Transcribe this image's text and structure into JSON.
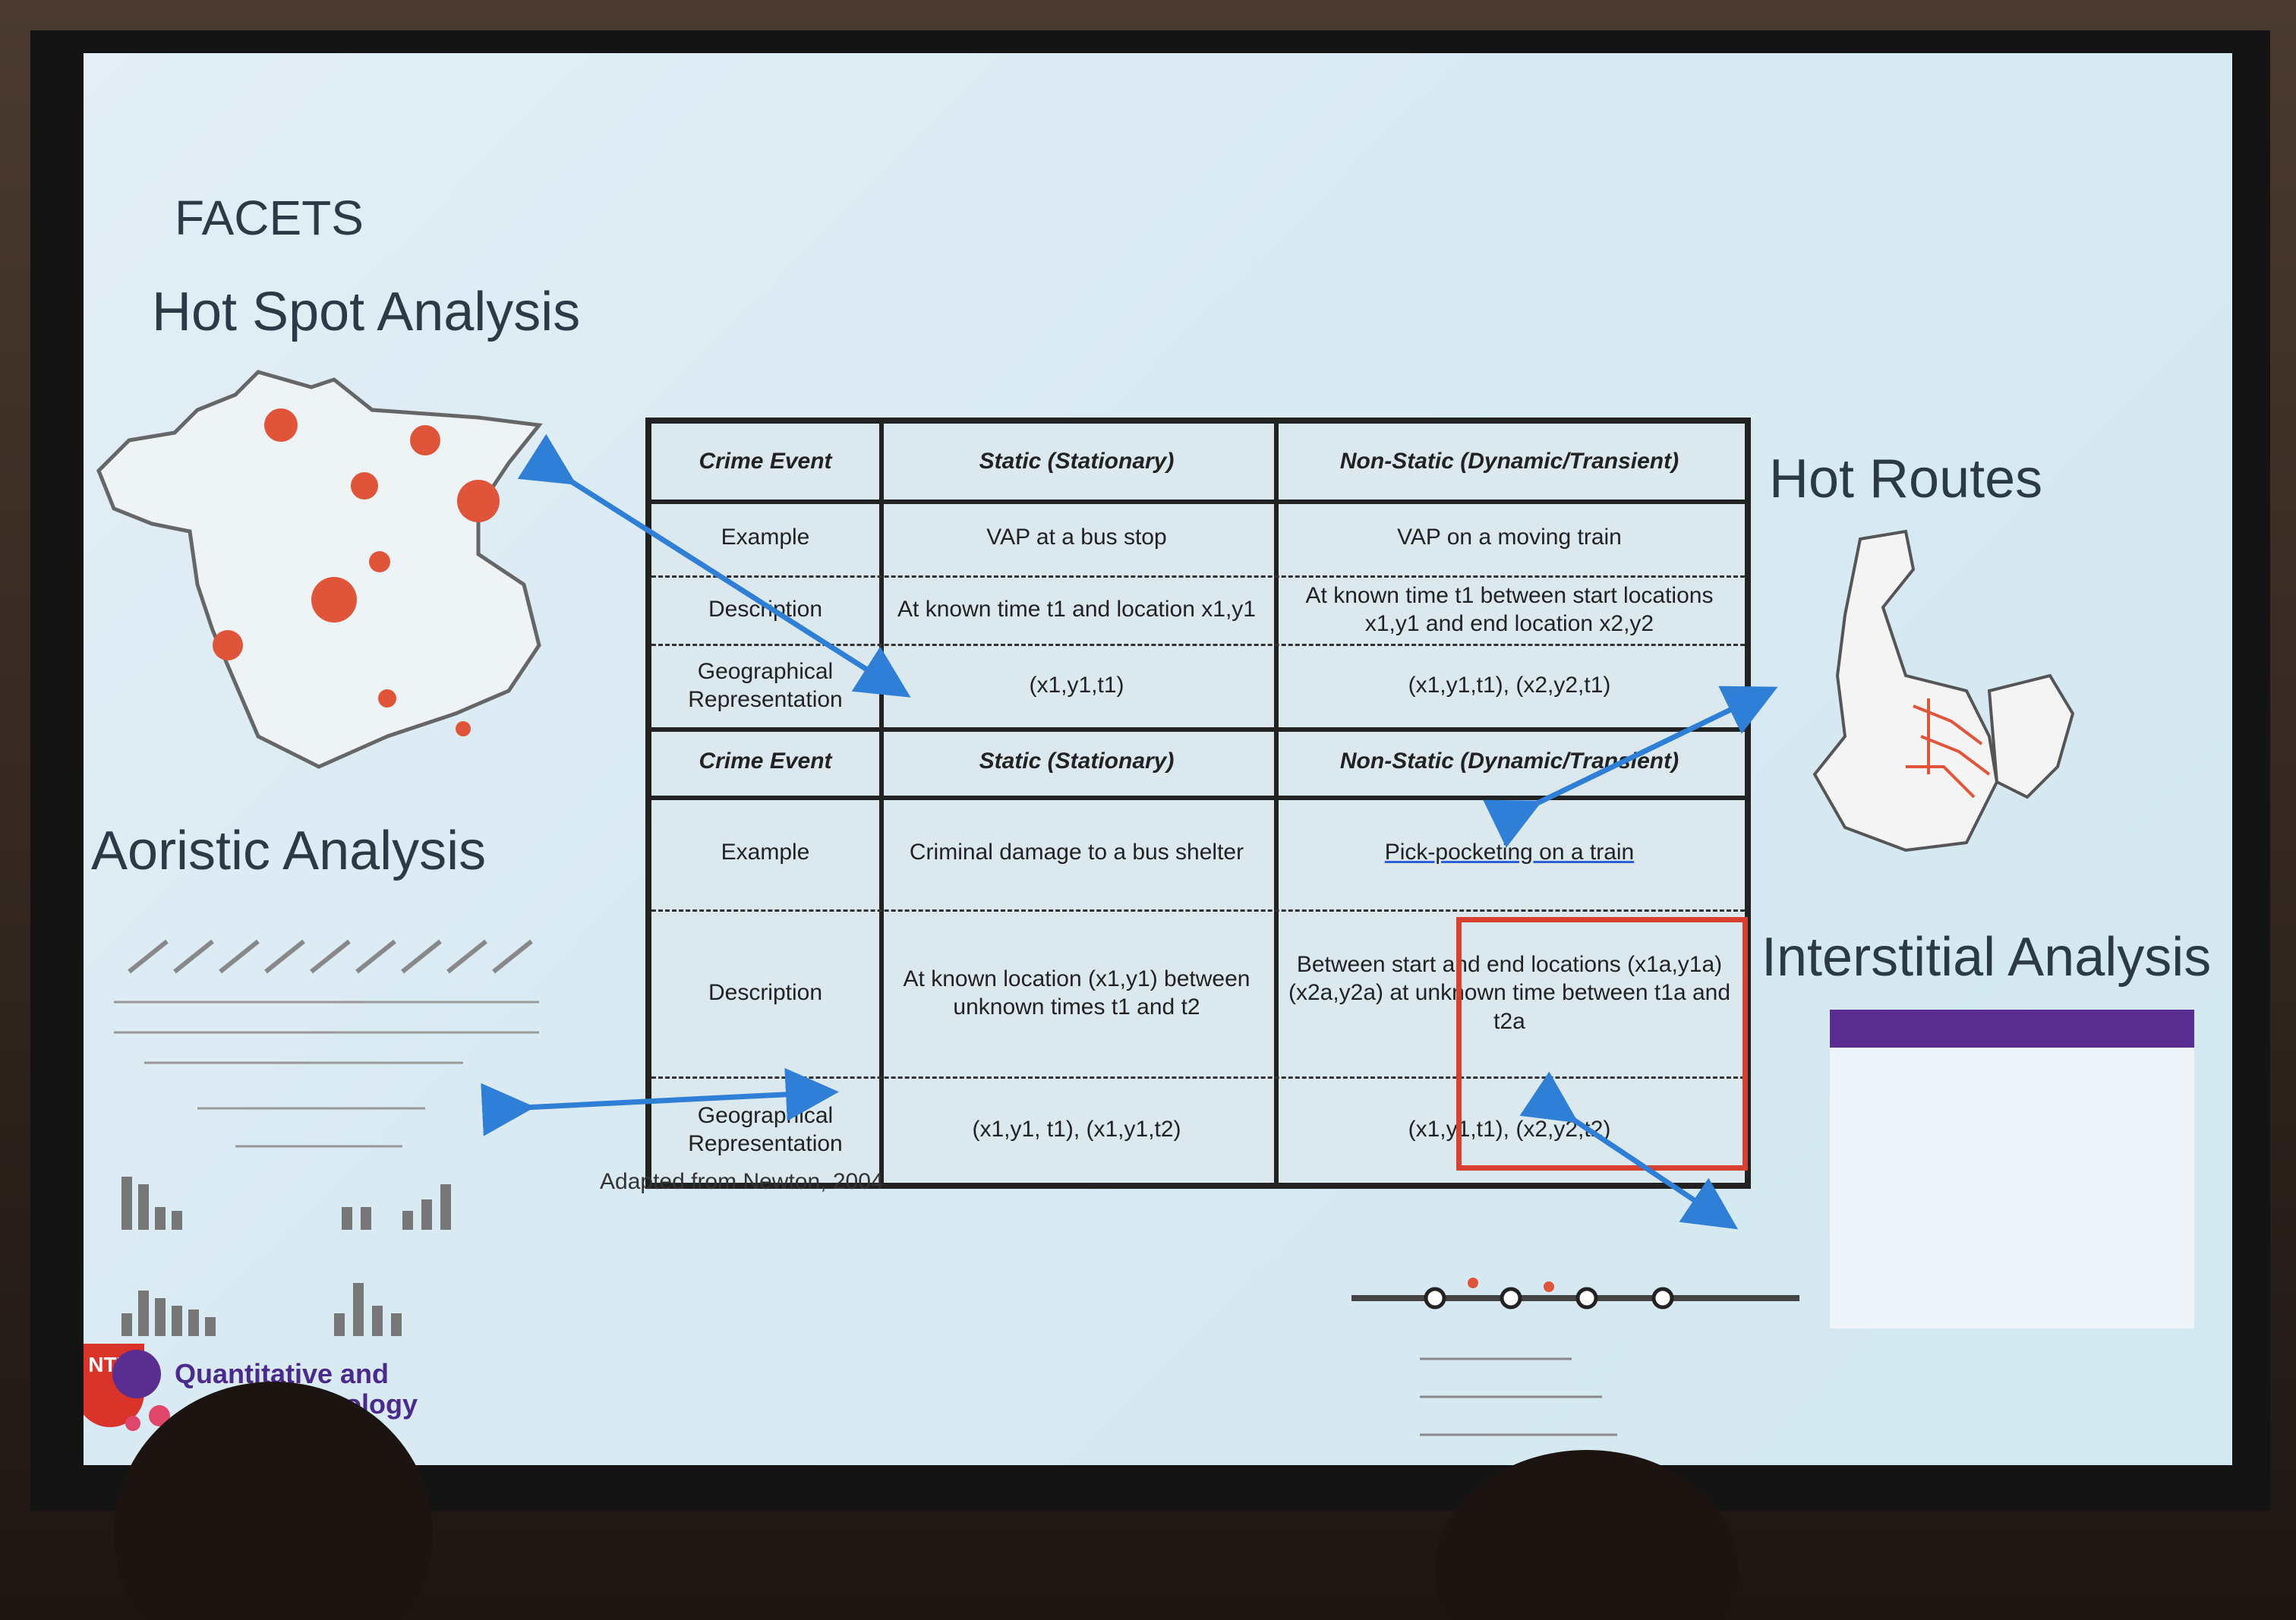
{
  "slide": {
    "section_label": "FACETS",
    "hot_spot_title": "Hot Spot Analysis",
    "aoristic_title": "Aoristic Analysis",
    "hot_routes_title": "Hot Routes",
    "interstitial_title": "Interstitial Analysis",
    "source_note": "Adapted from Newton, 2004",
    "logo_badge": "NTU",
    "logo_line1": "Quantitative and",
    "logo_line2": "minology"
  },
  "table_top": {
    "header_row": [
      "Crime Event",
      "Static (Stationary)",
      "Non-Static (Dynamic/Transient)"
    ],
    "row_labels": [
      "Example",
      "Description",
      "Geographical Representation"
    ],
    "static": [
      "VAP at a bus stop",
      "At known time t1 and location x1,y1",
      "(x1,y1,t1)"
    ],
    "non_static": [
      "VAP on a moving train",
      "At known time t1 between start locations x1,y1 and end location x2,y2",
      "(x1,y1,t1), (x2,y2,t1)"
    ]
  },
  "table_bottom": {
    "header_row": [
      "Crime Event",
      "Static (Stationary)",
      "Non-Static (Dynamic/Transient)"
    ],
    "row_labels": [
      "Example",
      "Description",
      "Geographical Representation"
    ],
    "static": [
      "Criminal damage to a bus shelter",
      "At known location (x1,y1) between unknown times t1 and t2",
      "(x1,y1, t1), (x1,y1,t2)"
    ],
    "non_static": [
      "Pick-pocketing on a train",
      "Between start and end locations (x1a,y1a) (x2a,y2a) at unknown time between t1a and t2a",
      "(x1,y1,t1), (x2,y2,t2)"
    ]
  },
  "colors": {
    "slide_bg": "#d9eaf3",
    "arrow": "#2f7fd6",
    "highlight_box": "#d8412f",
    "hotspot": "#e0553a",
    "logo_red": "#d9332a",
    "logo_purple": "#5a2d91"
  }
}
